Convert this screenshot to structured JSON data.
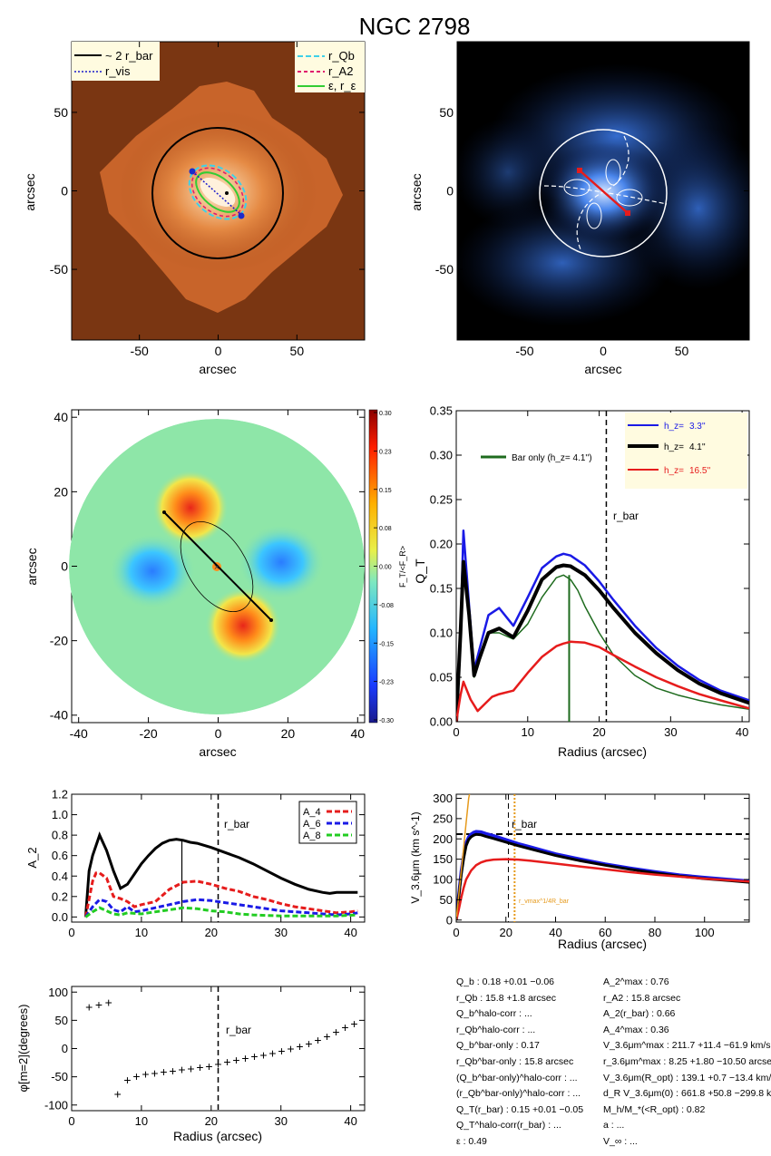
{
  "page_title": "NGC 2798",
  "panels": {
    "image_left": {
      "xlabel": "arcsec",
      "ylabel": "arcsec",
      "ticks": [
        -50,
        0,
        50
      ],
      "legend_left": [
        "~ 2 r_bar",
        "r_vis"
      ],
      "legend_right": [
        "r_Qb",
        "r_A2",
        "ε, r_ε"
      ],
      "colors": {
        "bg_outer": "#b4541e",
        "bg_inner": "#e58a44",
        "core": "#fbe6cc",
        "circle": "#000000",
        "rQb": "#3fd0e8",
        "rA2": "#e01a6e",
        "reps": "#33cc33",
        "dots": "#1a2acc"
      }
    },
    "image_right": {
      "xlabel": "arcsec",
      "ylabel": "arcsec",
      "ticks": [
        -50,
        0,
        50
      ],
      "colors": {
        "bg": "#000000",
        "blue": "#2a66e0",
        "circle": "#ffffff",
        "bar": "#e61c1c"
      }
    },
    "map": {
      "xlabel": "arcsec",
      "ylabel": "arcsec",
      "ticks": [
        -40,
        -20,
        0,
        20,
        40
      ],
      "colorbar_label": "F_T/<F_R>",
      "colorbar_ticks": [
        "0.30",
        "0.23",
        "0.15",
        "0.08",
        "0.00",
        "-0.08",
        "-0.15",
        "-0.23",
        "-0.30"
      ]
    },
    "qt_profile": {
      "rbar_label": "r_bar",
      "inset_legend": [
        "Bar only (h_z= 4.1'')"
      ],
      "legend": [
        {
          "label": "h_z=",
          "value": "3.3''",
          "color": "#1a1ae6"
        },
        {
          "label": "h_z=",
          "value": "4.1''",
          "color": "#000000"
        },
        {
          "label": "h_z=",
          "value": "16.5''",
          "color": "#e61c1c"
        }
      ]
    },
    "a2_profile": {
      "rbar_label": "r_bar",
      "legend": [
        "A_4",
        "A_6",
        "A_8"
      ]
    },
    "vcirc": {
      "rbar_label": "r_bar",
      "annotation": "r_vmax^1/4R_bar"
    },
    "phase": {
      "rbar_label": "r_bar"
    }
  },
  "stats_left": [
    "Q_b :  0.18 +0.01 −0.06",
    "r_Qb :  15.8 +1.8 arcsec",
    "Q_b^halo-corr : ...",
    "r_Qb^halo-corr : ...",
    "Q_b^bar-only :  0.17",
    "r_Qb^bar-only :  15.8 arcsec",
    "(Q_b^bar-only)^halo-corr : ...",
    "(r_Qb^bar-only)^halo-corr : ...",
    "Q_T(r_bar) :  0.15 +0.01 −0.05",
    "Q_T^halo-corr(r_bar) : ...",
    "ε :  0.49"
  ],
  "stats_right": [
    "A_2^max :  0.76",
    "r_A2 :  15.8 arcsec",
    "A_2(r_bar) :  0.66",
    "A_4^max :  0.36",
    "V_3.6μm^max :  211.7 +11.4 −61.9 km/s",
    "r_3.6μm^max :  8.25 +1.80 −10.50 arcsec",
    "V_3.6μm(R_opt) :  139.1 +0.7 −13.4 km/s",
    "d_R V_3.6μm(0) :  661.8 +50.8 −299.8 km/s/kpc",
    "M_h/M_*(<R_opt) :  0.82",
    "a : ...",
    "V_∞ : ..."
  ],
  "chart_data": [
    {
      "id": "qt_profile",
      "type": "line",
      "title": "",
      "xlabel": "Radius (arcsec)",
      "ylabel": "Q_T",
      "xlim": [
        0,
        41
      ],
      "ylim": [
        0,
        0.35
      ],
      "x_ticks": [
        0,
        10,
        20,
        30,
        40
      ],
      "y_ticks": [
        0.0,
        0.05,
        0.1,
        0.15,
        0.2,
        0.25,
        0.3,
        0.35
      ],
      "rbar": 21,
      "rQb_marker": 15.8,
      "series": [
        {
          "name": "Bar only (h_z= 4.1'')",
          "color": "#1e6b1e",
          "x": [
            0,
            0.6,
            1,
            1.8,
            2.5,
            3.2,
            4.5,
            6,
            8,
            10,
            12,
            14,
            15,
            16,
            17,
            18,
            20,
            22,
            25,
            28,
            31,
            34,
            37,
            41
          ],
          "y": [
            0,
            0.1,
            0.17,
            0.12,
            0.05,
            0.07,
            0.1,
            0.1,
            0.093,
            0.11,
            0.14,
            0.162,
            0.165,
            0.16,
            0.148,
            0.13,
            0.1,
            0.075,
            0.052,
            0.038,
            0.03,
            0.024,
            0.019,
            0.014
          ]
        },
        {
          "name": "h_z= 3.3''",
          "color": "#1a1ae6",
          "x": [
            0,
            0.6,
            1,
            1.8,
            2.5,
            3.2,
            4.5,
            6,
            8,
            10,
            12,
            14,
            15,
            16,
            18,
            20,
            22,
            25,
            28,
            31,
            34,
            37,
            41
          ],
          "y": [
            0,
            0.1,
            0.215,
            0.13,
            0.058,
            0.08,
            0.12,
            0.128,
            0.108,
            0.14,
            0.173,
            0.186,
            0.189,
            0.187,
            0.176,
            0.158,
            0.137,
            0.108,
            0.083,
            0.063,
            0.047,
            0.035,
            0.024
          ]
        },
        {
          "name": "h_z= 4.1''",
          "color": "#000000",
          "x": [
            0,
            0.6,
            1,
            1.8,
            2.5,
            3.2,
            4.5,
            6,
            8,
            10,
            12,
            14,
            15,
            16,
            18,
            20,
            22,
            25,
            28,
            31,
            34,
            37,
            41
          ],
          "y": [
            0,
            0.1,
            0.18,
            0.12,
            0.052,
            0.07,
            0.1,
            0.105,
            0.095,
            0.125,
            0.16,
            0.174,
            0.176,
            0.175,
            0.165,
            0.148,
            0.128,
            0.1,
            0.077,
            0.058,
            0.043,
            0.032,
            0.021
          ]
        },
        {
          "name": "h_z= 16.5''",
          "color": "#e61c1c",
          "x": [
            0,
            0.6,
            1,
            2,
            3,
            4,
            5,
            6,
            8,
            10,
            12,
            14,
            15,
            16,
            18,
            20,
            22,
            25,
            28,
            31,
            34,
            37,
            41
          ],
          "y": [
            0,
            0.03,
            0.045,
            0.025,
            0.012,
            0.02,
            0.028,
            0.031,
            0.035,
            0.055,
            0.073,
            0.085,
            0.088,
            0.09,
            0.089,
            0.084,
            0.075,
            0.062,
            0.05,
            0.04,
            0.031,
            0.024,
            0.015
          ]
        }
      ]
    },
    {
      "id": "a2_profile",
      "type": "line",
      "title": "",
      "xlabel": "",
      "ylabel": "A_2",
      "xlim": [
        0,
        42
      ],
      "ylim": [
        -0.05,
        1.2
      ],
      "x_ticks": [
        0,
        10,
        20,
        30,
        40
      ],
      "y_ticks": [
        0.0,
        0.2,
        0.4,
        0.6,
        0.8,
        1.0,
        1.2
      ],
      "rbar": 21,
      "rA2_marker": 15.8,
      "series": [
        {
          "name": "",
          "color": "#000000",
          "x": [
            2,
            2.5,
            3,
            4,
            5,
            6,
            7,
            8,
            9,
            10,
            11,
            12,
            13,
            14,
            15,
            16,
            17,
            18,
            20,
            22,
            24,
            26,
            28,
            30,
            32,
            34,
            36,
            37,
            38,
            40,
            41
          ],
          "y": [
            0,
            0.45,
            0.6,
            0.8,
            0.65,
            0.45,
            0.28,
            0.32,
            0.42,
            0.52,
            0.6,
            0.67,
            0.72,
            0.75,
            0.76,
            0.75,
            0.73,
            0.72,
            0.68,
            0.63,
            0.58,
            0.52,
            0.45,
            0.38,
            0.32,
            0.27,
            0.24,
            0.23,
            0.24,
            0.24,
            0.24
          ]
        },
        {
          "name": "A_4",
          "color": "#e61c1c",
          "x": [
            2,
            3,
            3.5,
            4,
            5,
            6,
            7,
            8,
            9,
            10,
            12,
            14,
            16,
            18,
            20,
            22,
            24,
            26,
            28,
            30,
            32,
            34,
            36,
            38,
            40,
            41
          ],
          "y": [
            0,
            0.35,
            0.43,
            0.43,
            0.38,
            0.2,
            0.18,
            0.15,
            0.1,
            0.12,
            0.15,
            0.27,
            0.34,
            0.35,
            0.32,
            0.28,
            0.25,
            0.2,
            0.17,
            0.13,
            0.1,
            0.08,
            0.06,
            0.04,
            0.05,
            0.06
          ]
        },
        {
          "name": "A_6",
          "color": "#1a1ae6",
          "x": [
            2,
            3,
            4,
            5,
            6,
            7,
            8,
            9,
            10,
            12,
            14,
            16,
            18,
            20,
            22,
            24,
            26,
            28,
            30,
            32,
            34,
            36,
            38,
            40,
            41
          ],
          "y": [
            0,
            0.1,
            0.17,
            0.15,
            0.07,
            0.05,
            0.1,
            0.05,
            0.06,
            0.09,
            0.12,
            0.15,
            0.17,
            0.16,
            0.14,
            0.12,
            0.1,
            0.08,
            0.06,
            0.05,
            0.04,
            0.03,
            0.02,
            0.03,
            0.04
          ]
        },
        {
          "name": "A_8",
          "color": "#22cc22",
          "x": [
            2,
            3,
            4,
            5,
            6,
            7,
            8,
            10,
            12,
            14,
            16,
            18,
            20,
            22,
            24,
            26,
            30,
            34,
            38,
            41
          ],
          "y": [
            0,
            0.05,
            0.09,
            0.06,
            0.03,
            0.02,
            0.04,
            0.03,
            0.05,
            0.07,
            0.09,
            0.08,
            0.06,
            0.05,
            0.03,
            0.02,
            0.01,
            0.01,
            0.01,
            0.02
          ]
        }
      ]
    },
    {
      "id": "vcirc",
      "type": "line",
      "title": "",
      "xlabel": "Radius (arcsec)",
      "ylabel": "V_3.6μm (km s^-1)",
      "xlim": [
        0,
        118
      ],
      "ylim": [
        -5,
        310
      ],
      "x_ticks": [
        0,
        20,
        40,
        60,
        80,
        100
      ],
      "y_ticks": [
        0,
        50,
        100,
        150,
        200,
        250,
        300
      ],
      "vmax_line": 211.7,
      "rbar": 21,
      "r_marker": 23.5,
      "series": [
        {
          "name": "",
          "color": "#1a1ae6",
          "x": [
            0,
            1,
            2,
            3,
            4,
            5,
            6,
            7,
            8,
            10,
            12,
            15,
            20,
            25,
            30,
            40,
            50,
            60,
            70,
            80,
            90,
            100,
            110,
            118
          ],
          "y": [
            0,
            60,
            120,
            160,
            190,
            205,
            212,
            216,
            218,
            217,
            213,
            208,
            198,
            188,
            180,
            163,
            150,
            138,
            128,
            119,
            111,
            105,
            100,
            96
          ]
        },
        {
          "name": "",
          "color": "#000000",
          "x": [
            0,
            1,
            2,
            3,
            4,
            5,
            6,
            7,
            8,
            10,
            12,
            15,
            20,
            25,
            30,
            40,
            50,
            60,
            70,
            80,
            90,
            100,
            110,
            118
          ],
          "y": [
            0,
            55,
            112,
            152,
            183,
            198,
            205,
            209,
            211,
            210,
            206,
            201,
            192,
            183,
            175,
            159,
            146,
            135,
            125,
            116,
            108,
            102,
            97,
            93
          ]
        },
        {
          "name": "",
          "color": "#e61c1c",
          "x": [
            0,
            1,
            2,
            3,
            4,
            6,
            8,
            10,
            12,
            15,
            20,
            25,
            30,
            40,
            50,
            60,
            70,
            80,
            90,
            100,
            110,
            118
          ],
          "y": [
            0,
            25,
            55,
            80,
            100,
            122,
            135,
            142,
            146,
            149,
            150,
            149,
            146,
            139,
            132,
            125,
            118,
            112,
            107,
            102,
            98,
            95
          ]
        },
        {
          "name": "",
          "color": "#e69a1c",
          "x": [
            0,
            1,
            2,
            3,
            4,
            5,
            6
          ],
          "y": [
            0,
            60,
            120,
            180,
            240,
            300,
            330
          ]
        }
      ]
    },
    {
      "id": "phase",
      "type": "scatter",
      "title": "",
      "xlabel": "Radius (arcsec)",
      "ylabel": "φ[m=2](degrees)",
      "xlim": [
        0,
        42
      ],
      "ylim": [
        -110,
        110
      ],
      "x_ticks": [
        0,
        10,
        20,
        30,
        40
      ],
      "y_ticks": [
        -100,
        -50,
        0,
        50,
        100
      ],
      "rbar": 21,
      "x": [
        2.5,
        3.9,
        5.3,
        6.6,
        8.0,
        9.3,
        10.6,
        11.9,
        13.2,
        14.5,
        15.8,
        17.1,
        18.4,
        19.7,
        21.0,
        22.3,
        23.6,
        24.9,
        26.2,
        27.5,
        28.8,
        30.1,
        31.4,
        32.7,
        34.0,
        35.3,
        36.6,
        37.9,
        39.2,
        40.5
      ],
      "y": [
        74,
        78,
        82,
        -80,
        -55,
        -49,
        -45,
        -43,
        -41,
        -39,
        -37,
        -35,
        -33,
        -31,
        -27,
        -23,
        -20,
        -17,
        -14,
        -11,
        -8,
        -4,
        0,
        4,
        9,
        15,
        22,
        30,
        38,
        44
      ]
    }
  ]
}
